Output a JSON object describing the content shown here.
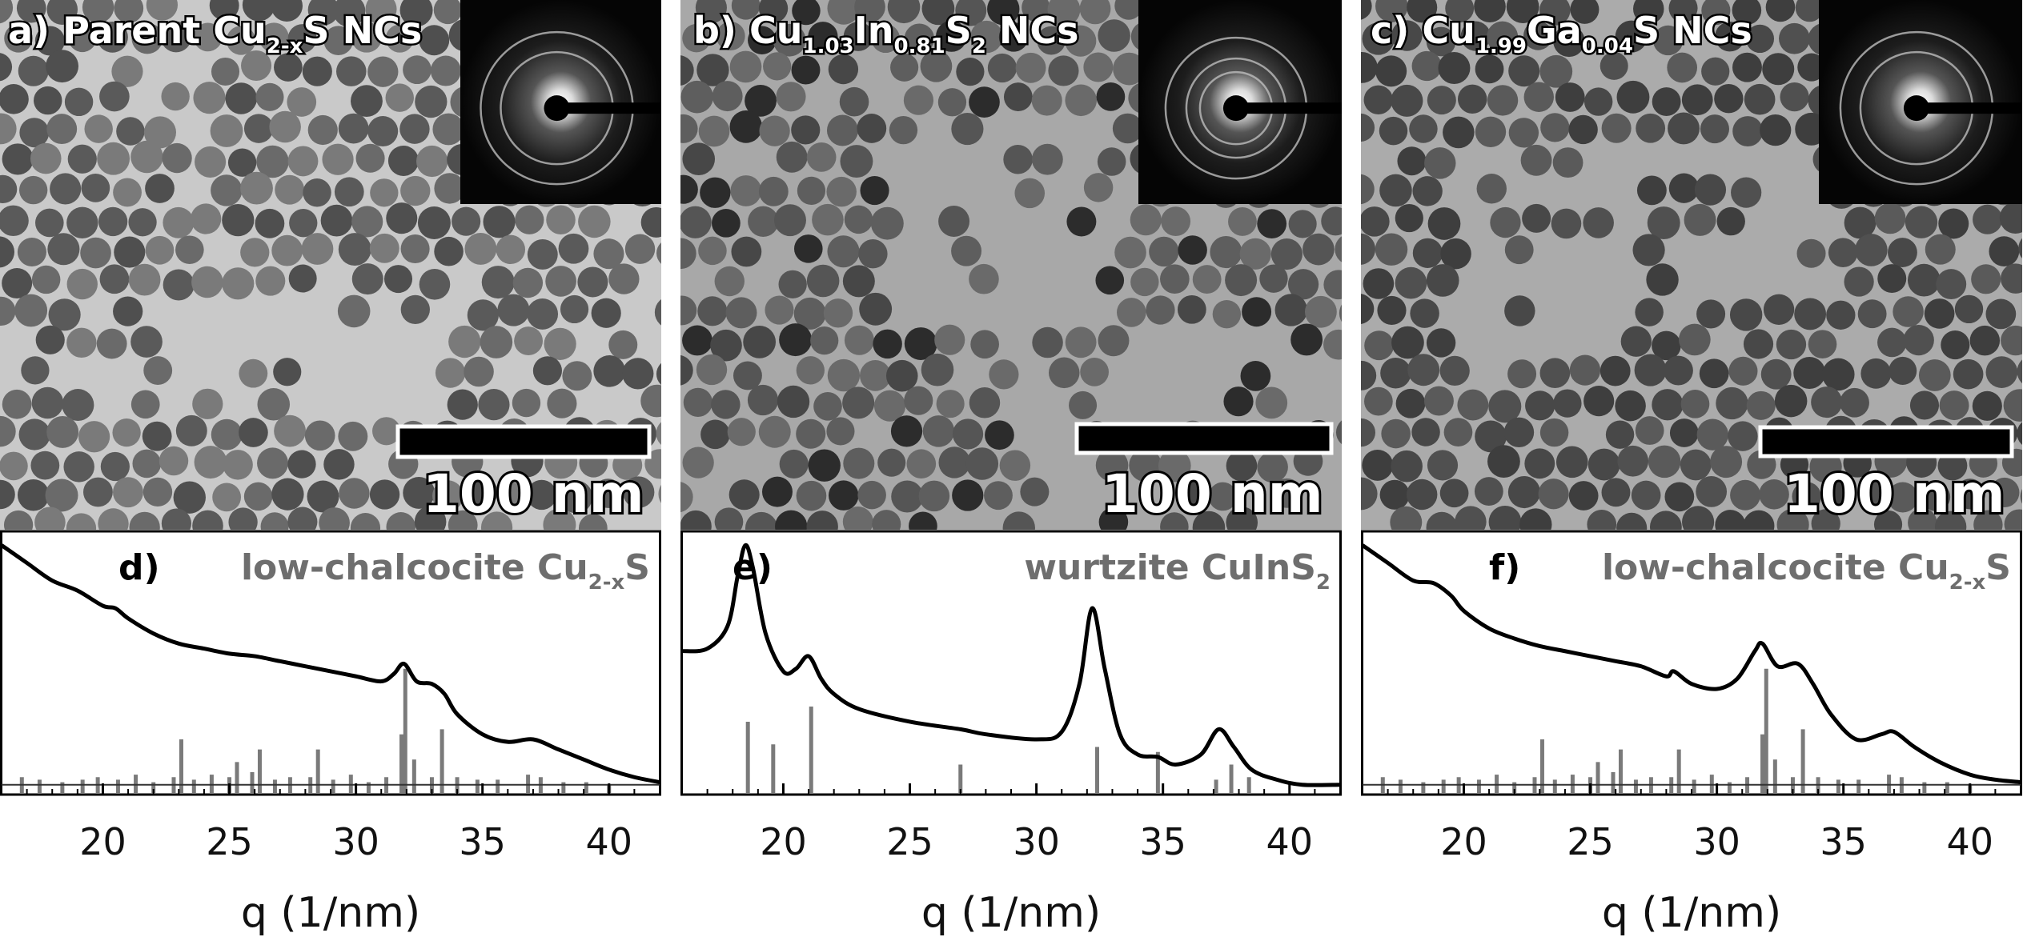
{
  "tem_panels": [
    {
      "letter": "a)",
      "pre": "Parent Cu",
      "sub1": "2-x",
      "mid": "S NCs",
      "sub2": "",
      "post": "",
      "sub3": "",
      "tail": "",
      "scale_bar": "100 nm"
    },
    {
      "letter": "b)",
      "pre": "Cu",
      "sub1": "1.03",
      "mid": "In",
      "sub2": "0.81",
      "post": "S",
      "sub3": "2",
      "tail": " NCs",
      "scale_bar": "100 nm"
    },
    {
      "letter": "c)",
      "pre": "Cu",
      "sub1": "1.99",
      "mid": "Ga",
      "sub2": "0.04",
      "post": "S NCs",
      "sub3": "",
      "tail": "",
      "scale_bar": "100 nm"
    }
  ],
  "chart_data": [
    {
      "type": "line",
      "panel": "d)",
      "title_main": "low-chalcocite Cu",
      "title_sub": "2-x",
      "title_tail": "S",
      "xlabel": "q (1/nm)",
      "xlim": [
        16,
        42
      ],
      "ylim": [
        0,
        1
      ],
      "xticks": [
        20,
        25,
        30,
        35,
        40
      ],
      "curve": {
        "x": [
          16,
          17,
          18,
          19,
          20,
          20.5,
          21,
          22,
          23,
          24,
          25,
          26,
          27,
          28,
          29,
          30,
          31,
          31.5,
          31.9,
          32.4,
          33,
          33.5,
          34,
          35,
          36,
          37,
          38,
          39,
          40,
          41,
          42
        ],
        "y": [
          0.97,
          0.9,
          0.83,
          0.79,
          0.73,
          0.72,
          0.68,
          0.62,
          0.58,
          0.56,
          0.54,
          0.53,
          0.51,
          0.49,
          0.47,
          0.45,
          0.43,
          0.46,
          0.5,
          0.43,
          0.42,
          0.38,
          0.3,
          0.22,
          0.19,
          0.2,
          0.16,
          0.12,
          0.08,
          0.05,
          0.03
        ]
      },
      "reference": {
        "name": "low-chalcocite Cu2-xS",
        "x": [
          16.8,
          17.5,
          18.4,
          19.2,
          19.8,
          20.6,
          21.3,
          22.0,
          22.8,
          23.1,
          23.6,
          24.3,
          25.0,
          25.3,
          25.9,
          26.2,
          26.8,
          27.4,
          28.2,
          28.5,
          29.1,
          29.8,
          30.5,
          31.2,
          31.8,
          31.95,
          32.3,
          33.0,
          33.4,
          34.0,
          34.8,
          35.6,
          36.8,
          37.3,
          38.2,
          39.1,
          40.0
        ],
        "y": [
          0.05,
          0.04,
          0.03,
          0.04,
          0.05,
          0.04,
          0.06,
          0.03,
          0.05,
          0.2,
          0.04,
          0.06,
          0.05,
          0.11,
          0.07,
          0.16,
          0.04,
          0.05,
          0.05,
          0.16,
          0.04,
          0.06,
          0.03,
          0.05,
          0.22,
          0.48,
          0.12,
          0.05,
          0.24,
          0.05,
          0.04,
          0.04,
          0.06,
          0.05,
          0.03,
          0.03,
          0.02
        ]
      }
    },
    {
      "type": "line",
      "panel": "e)",
      "title_main": "wurtzite CuInS",
      "title_sub": "2",
      "title_tail": "",
      "xlabel": "q (1/nm)",
      "xlim": [
        16,
        42
      ],
      "ylim": [
        0,
        1
      ],
      "xticks": [
        20,
        25,
        30,
        35,
        40
      ],
      "curve": {
        "x": [
          16,
          17,
          17.8,
          18.2,
          18.5,
          18.8,
          19.3,
          20,
          20.5,
          21,
          21.5,
          22,
          23,
          25,
          27,
          28,
          30,
          31,
          31.7,
          32.2,
          32.7,
          33.3,
          34,
          34.8,
          35.5,
          36.5,
          37.2,
          37.8,
          38.5,
          39.5,
          40.5,
          42
        ],
        "y": [
          0.55,
          0.56,
          0.65,
          0.85,
          0.97,
          0.88,
          0.62,
          0.47,
          0.48,
          0.53,
          0.44,
          0.38,
          0.32,
          0.27,
          0.24,
          0.22,
          0.2,
          0.23,
          0.42,
          0.72,
          0.48,
          0.22,
          0.14,
          0.13,
          0.1,
          0.14,
          0.24,
          0.17,
          0.08,
          0.04,
          0.02,
          0.02
        ]
      },
      "reference": {
        "name": "wurtzite CuInS2",
        "x": [
          18.6,
          19.6,
          21.1,
          27.0,
          32.4,
          34.8,
          37.1,
          37.7,
          38.4
        ],
        "y": [
          0.27,
          0.18,
          0.33,
          0.1,
          0.17,
          0.15,
          0.04,
          0.1,
          0.05
        ]
      }
    },
    {
      "type": "line",
      "panel": "f)",
      "title_main": "low-chalcocite Cu",
      "title_sub": "2-x",
      "title_tail": "S",
      "xlabel": "q (1/nm)",
      "xlim": [
        16,
        42
      ],
      "ylim": [
        0,
        1
      ],
      "xticks": [
        20,
        25,
        30,
        35,
        40
      ],
      "curve": {
        "x": [
          16,
          17,
          18,
          18.8,
          19.5,
          20,
          21,
          22,
          23,
          24,
          25,
          26,
          27,
          28,
          28.3,
          29,
          30,
          30.8,
          31.5,
          31.8,
          32.4,
          33.2,
          33.8,
          34.5,
          35.5,
          36.5,
          37,
          37.8,
          38.8,
          40,
          41,
          42
        ],
        "y": [
          0.97,
          0.9,
          0.83,
          0.82,
          0.77,
          0.71,
          0.64,
          0.6,
          0.57,
          0.55,
          0.53,
          0.51,
          0.49,
          0.45,
          0.47,
          0.42,
          0.4,
          0.44,
          0.55,
          0.58,
          0.49,
          0.5,
          0.42,
          0.3,
          0.2,
          0.22,
          0.23,
          0.17,
          0.11,
          0.06,
          0.04,
          0.03
        ]
      },
      "reference": {
        "name": "low-chalcocite Cu2-xS",
        "x": [
          16.8,
          17.5,
          18.4,
          19.2,
          19.8,
          20.6,
          21.3,
          22.0,
          22.8,
          23.1,
          23.6,
          24.3,
          25.0,
          25.3,
          25.9,
          26.2,
          26.8,
          27.4,
          28.2,
          28.5,
          29.1,
          29.8,
          30.5,
          31.2,
          31.8,
          31.95,
          32.3,
          33.0,
          33.4,
          34.0,
          34.8,
          35.6,
          36.8,
          37.3,
          38.2,
          39.1,
          40.0
        ],
        "y": [
          0.05,
          0.04,
          0.03,
          0.04,
          0.05,
          0.04,
          0.06,
          0.03,
          0.05,
          0.2,
          0.04,
          0.06,
          0.05,
          0.11,
          0.07,
          0.16,
          0.04,
          0.05,
          0.05,
          0.16,
          0.04,
          0.06,
          0.03,
          0.05,
          0.22,
          0.48,
          0.12,
          0.05,
          0.24,
          0.05,
          0.04,
          0.04,
          0.06,
          0.05,
          0.03,
          0.03,
          0.02
        ]
      }
    }
  ]
}
